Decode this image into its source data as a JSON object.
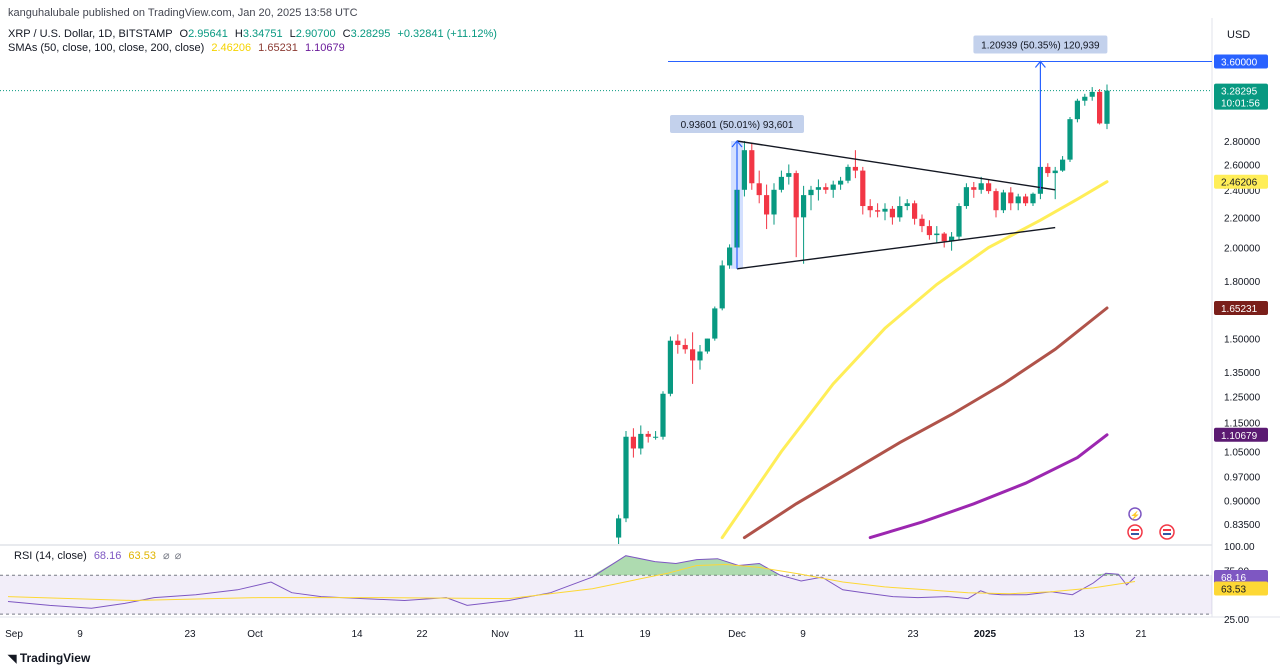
{
  "publisher": "kanguhalubale published on TradingView.com, Jan 20, 2025 13:58 UTC",
  "symbol": "XRP / U.S. Dollar, 1D, BITSTAMP",
  "ohlc": {
    "o_label": "O",
    "o": "2.95641",
    "h_label": "H",
    "h": "3.34751",
    "l_label": "L",
    "l": "2.90700",
    "c_label": "C",
    "c": "3.28295",
    "change": "+0.32841 (+11.12%)"
  },
  "sma_legend": {
    "label": "SMAs (50, close, 100, close, 200, close)",
    "v1": "2.46206",
    "v2": "1.65231",
    "v3": "1.10679"
  },
  "currency": "USD",
  "price_badges": {
    "target": "3.60000",
    "last": "3.28295",
    "countdown": "10:01:56",
    "sma50": "2.46206",
    "sma100": "1.65231",
    "sma200": "1.10679"
  },
  "measure_boxes": {
    "first": "0.93601 (50.01%) 93,601",
    "second": "1.20939 (50.35%) 120,939"
  },
  "rsi_legend": {
    "label": "RSI (14, close)",
    "v1": "68.16",
    "v2": "63.53"
  },
  "rsi_badges": {
    "rsi": "68.16",
    "ma": "63.53"
  },
  "footer_logo": "TradingView",
  "colors": {
    "up": "#089981",
    "down": "#f23645",
    "sma50": "#ffee58",
    "sma100": "#b0534a",
    "sma200": "#9c27b0",
    "target_line": "#2962ff",
    "rsi_line": "#7e57c2",
    "rsi_ma": "#fdd835"
  },
  "chart_data": [
    {
      "type": "candlestick",
      "title": "XRP / U.S. Dollar, 1D, BITSTAMP",
      "y_scale": "log",
      "y_ticks": [
        "2.80000",
        "2.60000",
        "2.40000",
        "2.20000",
        "2.00000",
        "1.80000",
        "1.50000",
        "1.35000",
        "1.25000",
        "1.15000",
        "1.05000",
        "0.97000",
        "0.90000",
        "0.83500"
      ],
      "x_ticks": [
        "Sep",
        "9",
        "23",
        "Oct",
        "14",
        "22",
        "Nov",
        "11",
        "19",
        "Dec",
        "9",
        "23",
        "2025",
        "13",
        "21"
      ],
      "candles": [
        {
          "date": "2024-11-15",
          "o": 0.8,
          "h": 0.86,
          "l": 0.78,
          "c": 0.85
        },
        {
          "date": "2024-11-16",
          "o": 0.85,
          "h": 1.12,
          "l": 0.84,
          "c": 1.1
        },
        {
          "date": "2024-11-17",
          "o": 1.1,
          "h": 1.13,
          "l": 1.03,
          "c": 1.06
        },
        {
          "date": "2024-11-18",
          "o": 1.06,
          "h": 1.14,
          "l": 1.04,
          "c": 1.11
        },
        {
          "date": "2024-11-19",
          "o": 1.11,
          "h": 1.12,
          "l": 1.08,
          "c": 1.1
        },
        {
          "date": "2024-11-20",
          "o": 1.1,
          "h": 1.12,
          "l": 1.09,
          "c": 1.1
        },
        {
          "date": "2024-11-21",
          "o": 1.1,
          "h": 1.27,
          "l": 1.09,
          "c": 1.26
        },
        {
          "date": "2024-11-22",
          "o": 1.26,
          "h": 1.51,
          "l": 1.25,
          "c": 1.49
        },
        {
          "date": "2024-11-23",
          "o": 1.49,
          "h": 1.52,
          "l": 1.43,
          "c": 1.47
        },
        {
          "date": "2024-11-24",
          "o": 1.47,
          "h": 1.5,
          "l": 1.43,
          "c": 1.45
        },
        {
          "date": "2024-11-25",
          "o": 1.45,
          "h": 1.53,
          "l": 1.3,
          "c": 1.4
        },
        {
          "date": "2024-11-26",
          "o": 1.4,
          "h": 1.47,
          "l": 1.36,
          "c": 1.44
        },
        {
          "date": "2024-11-27",
          "o": 1.44,
          "h": 1.5,
          "l": 1.43,
          "c": 1.5
        },
        {
          "date": "2024-11-28",
          "o": 1.5,
          "h": 1.66,
          "l": 1.49,
          "c": 1.65
        },
        {
          "date": "2024-11-29",
          "o": 1.65,
          "h": 1.92,
          "l": 1.64,
          "c": 1.89
        },
        {
          "date": "2024-11-30",
          "o": 1.89,
          "h": 2.02,
          "l": 1.87,
          "c": 2.0
        },
        {
          "date": "2024-12-01",
          "o": 2.0,
          "h": 2.47,
          "l": 1.94,
          "c": 2.4
        },
        {
          "date": "2024-12-02",
          "o": 2.4,
          "h": 2.8,
          "l": 2.35,
          "c": 2.72
        },
        {
          "date": "2024-12-03",
          "o": 2.72,
          "h": 2.78,
          "l": 2.4,
          "c": 2.45
        },
        {
          "date": "2024-12-04",
          "o": 2.45,
          "h": 2.55,
          "l": 2.3,
          "c": 2.36
        },
        {
          "date": "2024-12-05",
          "o": 2.36,
          "h": 2.44,
          "l": 2.12,
          "c": 2.22
        },
        {
          "date": "2024-12-06",
          "o": 2.22,
          "h": 2.45,
          "l": 2.15,
          "c": 2.4
        },
        {
          "date": "2024-12-07",
          "o": 2.4,
          "h": 2.55,
          "l": 2.38,
          "c": 2.5
        },
        {
          "date": "2024-12-08",
          "o": 2.5,
          "h": 2.6,
          "l": 2.44,
          "c": 2.53
        },
        {
          "date": "2024-12-09",
          "o": 2.53,
          "h": 2.55,
          "l": 1.94,
          "c": 2.2
        },
        {
          "date": "2024-12-10",
          "o": 2.2,
          "h": 2.43,
          "l": 1.9,
          "c": 2.36
        },
        {
          "date": "2024-12-11",
          "o": 2.36,
          "h": 2.43,
          "l": 2.25,
          "c": 2.4
        },
        {
          "date": "2024-12-12",
          "o": 2.4,
          "h": 2.48,
          "l": 2.32,
          "c": 2.42
        },
        {
          "date": "2024-12-13",
          "o": 2.42,
          "h": 2.45,
          "l": 2.37,
          "c": 2.4
        },
        {
          "date": "2024-12-14",
          "o": 2.4,
          "h": 2.47,
          "l": 2.34,
          "c": 2.44
        },
        {
          "date": "2024-12-15",
          "o": 2.44,
          "h": 2.5,
          "l": 2.4,
          "c": 2.47
        },
        {
          "date": "2024-12-16",
          "o": 2.47,
          "h": 2.6,
          "l": 2.45,
          "c": 2.58
        },
        {
          "date": "2024-12-17",
          "o": 2.58,
          "h": 2.72,
          "l": 2.49,
          "c": 2.55
        },
        {
          "date": "2024-12-18",
          "o": 2.55,
          "h": 2.58,
          "l": 2.22,
          "c": 2.28
        },
        {
          "date": "2024-12-19",
          "o": 2.28,
          "h": 2.33,
          "l": 2.2,
          "c": 2.25
        },
        {
          "date": "2024-12-20",
          "o": 2.25,
          "h": 2.3,
          "l": 2.2,
          "c": 2.24
        },
        {
          "date": "2024-12-21",
          "o": 2.24,
          "h": 2.3,
          "l": 2.18,
          "c": 2.26
        },
        {
          "date": "2024-12-22",
          "o": 2.26,
          "h": 2.28,
          "l": 2.15,
          "c": 2.2
        },
        {
          "date": "2024-12-23",
          "o": 2.2,
          "h": 2.35,
          "l": 2.17,
          "c": 2.28
        },
        {
          "date": "2024-12-24",
          "o": 2.28,
          "h": 2.33,
          "l": 2.25,
          "c": 2.3
        },
        {
          "date": "2024-12-25",
          "o": 2.3,
          "h": 2.32,
          "l": 2.15,
          "c": 2.19
        },
        {
          "date": "2024-12-26",
          "o": 2.19,
          "h": 2.22,
          "l": 2.1,
          "c": 2.14
        },
        {
          "date": "2024-12-27",
          "o": 2.14,
          "h": 2.18,
          "l": 2.05,
          "c": 2.08
        },
        {
          "date": "2024-12-28",
          "o": 2.08,
          "h": 2.14,
          "l": 2.03,
          "c": 2.09
        },
        {
          "date": "2024-12-29",
          "o": 2.09,
          "h": 2.1,
          "l": 2.0,
          "c": 2.04
        },
        {
          "date": "2024-12-30",
          "o": 2.04,
          "h": 2.1,
          "l": 1.98,
          "c": 2.07
        },
        {
          "date": "2024-12-31",
          "o": 2.07,
          "h": 2.3,
          "l": 2.05,
          "c": 2.28
        },
        {
          "date": "2025-01-01",
          "o": 2.28,
          "h": 2.45,
          "l": 2.26,
          "c": 2.42
        },
        {
          "date": "2025-01-02",
          "o": 2.42,
          "h": 2.46,
          "l": 2.34,
          "c": 2.4
        },
        {
          "date": "2025-01-03",
          "o": 2.4,
          "h": 2.5,
          "l": 2.37,
          "c": 2.45
        },
        {
          "date": "2025-01-04",
          "o": 2.45,
          "h": 2.48,
          "l": 2.37,
          "c": 2.39
        },
        {
          "date": "2025-01-05",
          "o": 2.39,
          "h": 2.41,
          "l": 2.2,
          "c": 2.25
        },
        {
          "date": "2025-01-06",
          "o": 2.25,
          "h": 2.4,
          "l": 2.23,
          "c": 2.38
        },
        {
          "date": "2025-01-07",
          "o": 2.38,
          "h": 2.42,
          "l": 2.25,
          "c": 2.3
        },
        {
          "date": "2025-01-08",
          "o": 2.3,
          "h": 2.37,
          "l": 2.25,
          "c": 2.35
        },
        {
          "date": "2025-01-09",
          "o": 2.35,
          "h": 2.37,
          "l": 2.28,
          "c": 2.3
        },
        {
          "date": "2025-01-10",
          "o": 2.3,
          "h": 2.38,
          "l": 2.28,
          "c": 2.37
        },
        {
          "date": "2025-01-11",
          "o": 2.37,
          "h": 2.6,
          "l": 2.33,
          "c": 2.58
        },
        {
          "date": "2025-01-12",
          "o": 2.58,
          "h": 2.61,
          "l": 2.5,
          "c": 2.53
        },
        {
          "date": "2025-01-13",
          "o": 2.53,
          "h": 2.58,
          "l": 2.33,
          "c": 2.55
        },
        {
          "date": "2025-01-14",
          "o": 2.55,
          "h": 2.67,
          "l": 2.54,
          "c": 2.64
        },
        {
          "date": "2025-01-15",
          "o": 2.64,
          "h": 3.02,
          "l": 2.62,
          "c": 3.0
        },
        {
          "date": "2025-01-16",
          "o": 3.0,
          "h": 3.2,
          "l": 2.97,
          "c": 3.18
        },
        {
          "date": "2025-01-17",
          "o": 3.18,
          "h": 3.25,
          "l": 3.13,
          "c": 3.22
        },
        {
          "date": "2025-01-18",
          "o": 3.22,
          "h": 3.32,
          "l": 3.18,
          "c": 3.27
        },
        {
          "date": "2025-01-19",
          "o": 3.27,
          "h": 3.3,
          "l": 2.95,
          "c": 2.96
        },
        {
          "date": "2025-01-20",
          "o": 2.95641,
          "h": 3.34751,
          "l": 2.907,
          "c": 3.28295
        }
      ],
      "sma": [
        {
          "name": "SMA 50",
          "last": 2.46206,
          "points": [
            [
              "2024-11-29",
              0.8
            ],
            [
              "2024-12-07",
              1.05
            ],
            [
              "2024-12-14",
              1.3
            ],
            [
              "2024-12-21",
              1.55
            ],
            [
              "2024-12-28",
              1.78
            ],
            [
              "2025-01-04",
              2.0
            ],
            [
              "2025-01-11",
              2.18
            ],
            [
              "2025-01-16",
              2.33
            ],
            [
              "2025-01-20",
              2.46206
            ]
          ]
        },
        {
          "name": "SMA 100",
          "last": 1.65231,
          "points": [
            [
              "2024-12-02",
              0.8
            ],
            [
              "2024-12-09",
              0.89
            ],
            [
              "2024-12-16",
              0.98
            ],
            [
              "2024-12-23",
              1.08
            ],
            [
              "2024-12-30",
              1.18
            ],
            [
              "2025-01-06",
              1.3
            ],
            [
              "2025-01-13",
              1.45
            ],
            [
              "2025-01-20",
              1.65231
            ]
          ]
        },
        {
          "name": "SMA 200",
          "last": 1.10679,
          "points": [
            [
              "2024-12-19",
              0.8
            ],
            [
              "2024-12-26",
              0.84
            ],
            [
              "2025-01-02",
              0.89
            ],
            [
              "2025-01-09",
              0.95
            ],
            [
              "2025-01-16",
              1.03
            ],
            [
              "2025-01-20",
              1.10679
            ]
          ]
        }
      ],
      "trendlines": [
        {
          "from": [
            "2024-12-01",
            2.8
          ],
          "to": [
            "2025-01-13",
            2.4
          ]
        },
        {
          "from": [
            "2024-12-01",
            1.87
          ],
          "to": [
            "2025-01-13",
            2.13
          ]
        }
      ],
      "horizontal_line": 3.6,
      "measurements": [
        {
          "from": [
            "2024-12-01",
            1.87
          ],
          "to": [
            "2024-12-01",
            2.8
          ],
          "label": "0.93601 (50.01%) 93,601"
        },
        {
          "from": [
            "2025-01-11",
            2.4
          ],
          "to": [
            "2025-01-11",
            3.6
          ],
          "label": "1.20939 (50.35%) 120,939"
        }
      ]
    },
    {
      "type": "line",
      "title": "RSI (14, close)",
      "y_ticks": [
        "100.00",
        "75.00",
        "25.00"
      ],
      "bands": [
        30,
        70
      ],
      "series": [
        {
          "name": "RSI",
          "last": 68.16,
          "values": [
            [
              0,
              43
            ],
            [
              10,
              39
            ],
            [
              20,
              36
            ],
            [
              28,
              41
            ],
            [
              35,
              47
            ],
            [
              45,
              50
            ],
            [
              55,
              55
            ],
            [
              63,
              63
            ],
            [
              68,
              52
            ],
            [
              75,
              48
            ],
            [
              85,
              46
            ],
            [
              95,
              44
            ],
            [
              105,
              47
            ],
            [
              110,
              39
            ],
            [
              120,
              44
            ],
            [
              130,
              52
            ],
            [
              140,
              68
            ],
            [
              148,
              90
            ],
            [
              155,
              84
            ],
            [
              160,
              82
            ],
            [
              165,
              86
            ],
            [
              170,
              87
            ],
            [
              175,
              80
            ],
            [
              180,
              82
            ],
            [
              185,
              70
            ],
            [
              190,
              64
            ],
            [
              195,
              68
            ],
            [
              200,
              55
            ],
            [
              205,
              52
            ],
            [
              212,
              48
            ],
            [
              218,
              47
            ],
            [
              225,
              48
            ],
            [
              230,
              46
            ],
            [
              233,
              54
            ],
            [
              235,
              51
            ],
            [
              238,
              50
            ],
            [
              244,
              50
            ],
            [
              250,
              53
            ],
            [
              255,
              50
            ],
            [
              260,
              62
            ],
            [
              263,
              72
            ],
            [
              266,
              71
            ],
            [
              268,
              60
            ],
            [
              270,
              68.16
            ]
          ]
        },
        {
          "name": "RSI MA",
          "last": 63.53,
          "values": [
            [
              0,
              48
            ],
            [
              30,
              44
            ],
            [
              60,
              47
            ],
            [
              90,
              47
            ],
            [
              120,
              46
            ],
            [
              140,
              56
            ],
            [
              150,
              65
            ],
            [
              158,
              72
            ],
            [
              165,
              80
            ],
            [
              172,
              81
            ],
            [
              180,
              78
            ],
            [
              190,
              71
            ],
            [
              200,
              63
            ],
            [
              210,
              58
            ],
            [
              220,
              55
            ],
            [
              230,
              52
            ],
            [
              240,
              51
            ],
            [
              250,
              53
            ],
            [
              260,
              57
            ],
            [
              270,
              63.53
            ]
          ]
        }
      ]
    }
  ]
}
